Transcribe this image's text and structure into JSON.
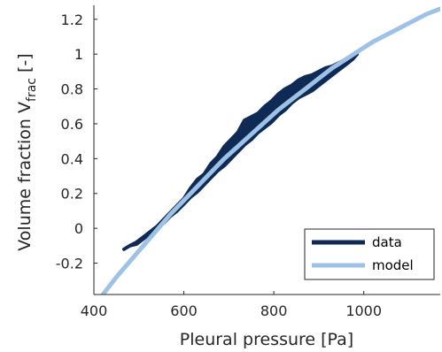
{
  "chart_data": {
    "type": "line",
    "title": "",
    "xlabel": "Pleural pressure [Pa]",
    "ylabel": {
      "main": "Volume fraction V",
      "sub": "frac",
      "unit": " [-]"
    },
    "xlim": [
      400,
      1170
    ],
    "ylim": [
      -0.38,
      1.28
    ],
    "x_ticks": [
      400,
      600,
      800,
      1000
    ],
    "x_tick_labels": [
      "400",
      "600",
      "800",
      "1000"
    ],
    "y_ticks": [
      -0.2,
      0,
      0.2,
      0.4,
      0.6,
      0.8,
      1,
      1.2
    ],
    "y_tick_labels": [
      "-0.2",
      "0",
      "0.2",
      "0.4",
      "0.6",
      "0.8",
      "1",
      "1.2"
    ],
    "grid": false,
    "legend_position": "bottom-right",
    "series": [
      {
        "name": "data",
        "color": "#0e2a55",
        "style": "band",
        "x": [
          467,
          480,
          495,
          510,
          525,
          540,
          555,
          570,
          585,
          600,
          615,
          630,
          645,
          660,
          675,
          690,
          705,
          720,
          735,
          750,
          765,
          780,
          795,
          810,
          825,
          840,
          855,
          870,
          885,
          900,
          915,
          930,
          945,
          960,
          975,
          985
        ],
        "upper": [
          -0.12,
          -0.1,
          -0.08,
          -0.05,
          -0.02,
          0.01,
          0.05,
          0.09,
          0.13,
          0.17,
          0.23,
          0.28,
          0.31,
          0.37,
          0.41,
          0.47,
          0.51,
          0.55,
          0.62,
          0.64,
          0.66,
          0.7,
          0.73,
          0.77,
          0.8,
          0.82,
          0.85,
          0.87,
          0.88,
          0.9,
          0.92,
          0.93,
          0.95,
          0.97,
          0.99,
          1.0
        ],
        "lower": [
          -0.12,
          -0.1,
          -0.09,
          -0.06,
          -0.03,
          0.0,
          0.03,
          0.07,
          0.1,
          0.14,
          0.18,
          0.21,
          0.25,
          0.29,
          0.33,
          0.36,
          0.4,
          0.44,
          0.48,
          0.51,
          0.55,
          0.58,
          0.61,
          0.65,
          0.68,
          0.72,
          0.75,
          0.77,
          0.79,
          0.82,
          0.85,
          0.88,
          0.91,
          0.94,
          0.97,
          1.0
        ]
      },
      {
        "name": "model",
        "color": "#9ec2e6",
        "style": "line",
        "x": [
          420,
          450,
          480,
          510,
          540,
          570,
          600,
          630,
          660,
          690,
          720,
          750,
          780,
          810,
          840,
          870,
          900,
          930,
          960,
          990,
          1020,
          1050,
          1080,
          1110,
          1140,
          1170
        ],
        "y": [
          -0.38,
          -0.28,
          -0.19,
          -0.1,
          -0.01,
          0.08,
          0.16,
          0.24,
          0.32,
          0.4,
          0.47,
          0.54,
          0.61,
          0.68,
          0.74,
          0.8,
          0.86,
          0.92,
          0.97,
          1.02,
          1.07,
          1.11,
          1.15,
          1.19,
          1.23,
          1.26
        ]
      }
    ]
  }
}
